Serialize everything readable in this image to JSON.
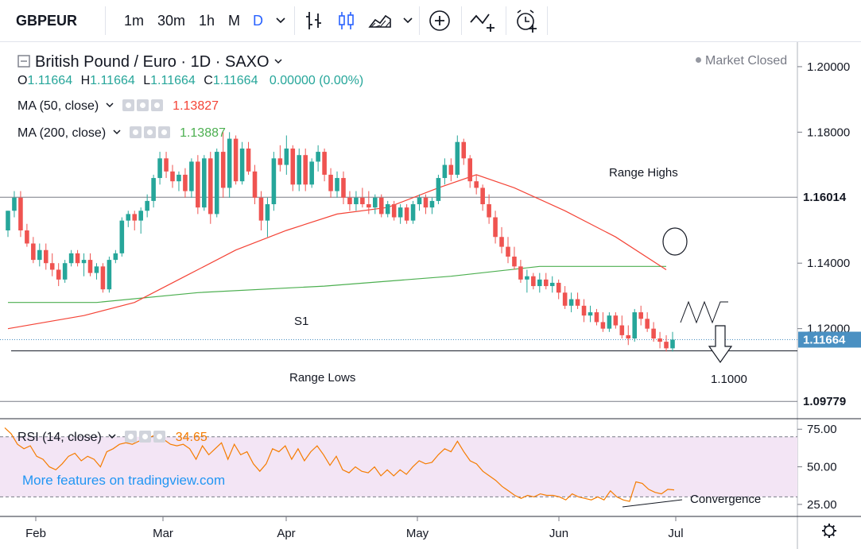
{
  "toolbar": {
    "symbol": "GBPEUR",
    "intervals": [
      "1m",
      "30m",
      "1h",
      "M",
      "D"
    ],
    "active_interval": "D",
    "icons": [
      "chevron-down-icon",
      "bar-style-icon",
      "candle-style-icon",
      "area-style-icon",
      "chevron-down-icon",
      "add-compare-icon",
      "indicators-icon",
      "alert-icon"
    ]
  },
  "legend": {
    "title": "British Pound / Euro · 1D · SAXO",
    "market_status": "Market Closed",
    "o_label": "O",
    "o_value": "1.11664",
    "h_label": "H",
    "h_value": "1.11664",
    "l_label": "L",
    "l_value": "1.11664",
    "c_label": "C",
    "c_value": "1.11664",
    "change": "0.00000 (0.00%)",
    "ma50_label": "MA (50, close)",
    "ma50_value": "1.13827",
    "ma200_label": "MA (200, close)",
    "ma200_value": "1.13887",
    "rsi_label": "RSI (14, close)",
    "rsi_value": "34.65",
    "watermark": "More features on tradingview.com"
  },
  "colors": {
    "up": "#26a69a",
    "down": "#ef5350",
    "ma50": "#f44336",
    "ma200": "#4caf50",
    "rsi": "#f57c00",
    "rsi_band": "#f3e5f5",
    "price_tag": "#4a90c2",
    "accent": "#2962ff"
  },
  "chart_data": [
    {
      "type": "candlestick",
      "title": "British Pound / Euro · 1D · SAXO",
      "x_ticks": [
        "Feb",
        "Mar",
        "Apr",
        "May",
        "Jun",
        "Jul"
      ],
      "y_ticks": [
        "1.20000",
        "1.18000",
        "1.14000",
        "1.12000"
      ],
      "ylim": [
        1.0925,
        1.2075
      ],
      "price_labels": [
        {
          "value": 1.16014,
          "text": "1.16014"
        },
        {
          "value": 1.11664,
          "text": "1.11664"
        },
        {
          "value": 1.09779,
          "text": "1.09779"
        }
      ],
      "ohlc": [
        [
          1.15,
          1.156,
          1.148,
          1.156
        ],
        [
          1.156,
          1.162,
          1.154,
          1.16
        ],
        [
          1.16,
          1.162,
          1.148,
          1.15
        ],
        [
          1.15,
          1.152,
          1.145,
          1.146
        ],
        [
          1.146,
          1.148,
          1.14,
          1.141
        ],
        [
          1.141,
          1.146,
          1.139,
          1.144
        ],
        [
          1.144,
          1.146,
          1.138,
          1.14
        ],
        [
          1.14,
          1.143,
          1.136,
          1.138
        ],
        [
          1.138,
          1.14,
          1.133,
          1.135
        ],
        [
          1.135,
          1.141,
          1.134,
          1.14
        ],
        [
          1.14,
          1.144,
          1.139,
          1.143
        ],
        [
          1.143,
          1.144,
          1.139,
          1.14
        ],
        [
          1.14,
          1.143,
          1.136,
          1.141
        ],
        [
          1.141,
          1.143,
          1.136,
          1.137
        ],
        [
          1.137,
          1.14,
          1.135,
          1.139
        ],
        [
          1.139,
          1.14,
          1.131,
          1.132
        ],
        [
          1.132,
          1.142,
          1.131,
          1.141
        ],
        [
          1.141,
          1.144,
          1.14,
          1.143
        ],
        [
          1.143,
          1.154,
          1.142,
          1.153
        ],
        [
          1.153,
          1.156,
          1.151,
          1.155
        ],
        [
          1.155,
          1.156,
          1.15,
          1.153
        ],
        [
          1.153,
          1.157,
          1.149,
          1.156
        ],
        [
          1.156,
          1.161,
          1.154,
          1.159
        ],
        [
          1.159,
          1.167,
          1.157,
          1.166
        ],
        [
          1.166,
          1.174,
          1.164,
          1.172
        ],
        [
          1.172,
          1.174,
          1.166,
          1.168
        ],
        [
          1.168,
          1.17,
          1.163,
          1.165
        ],
        [
          1.165,
          1.168,
          1.162,
          1.167
        ],
        [
          1.167,
          1.169,
          1.16,
          1.162
        ],
        [
          1.162,
          1.172,
          1.16,
          1.171
        ],
        [
          1.171,
          1.173,
          1.155,
          1.157
        ],
        [
          1.157,
          1.173,
          1.156,
          1.172
        ],
        [
          1.172,
          1.174,
          1.152,
          1.155
        ],
        [
          1.155,
          1.175,
          1.154,
          1.174
        ],
        [
          1.174,
          1.18,
          1.16,
          1.163
        ],
        [
          1.163,
          1.18,
          1.16,
          1.178
        ],
        [
          1.178,
          1.179,
          1.164,
          1.165
        ],
        [
          1.165,
          1.177,
          1.164,
          1.175
        ],
        [
          1.175,
          1.177,
          1.167,
          1.168
        ],
        [
          1.168,
          1.17,
          1.158,
          1.16
        ],
        [
          1.16,
          1.162,
          1.15,
          1.153
        ],
        [
          1.153,
          1.16,
          1.148,
          1.158
        ],
        [
          1.158,
          1.174,
          1.156,
          1.172
        ],
        [
          1.172,
          1.176,
          1.168,
          1.17
        ],
        [
          1.17,
          1.179,
          1.167,
          1.175
        ],
        [
          1.175,
          1.176,
          1.162,
          1.164
        ],
        [
          1.164,
          1.175,
          1.162,
          1.173
        ],
        [
          1.173,
          1.175,
          1.162,
          1.164
        ],
        [
          1.164,
          1.172,
          1.163,
          1.171
        ],
        [
          1.171,
          1.176,
          1.168,
          1.174
        ],
        [
          1.174,
          1.175,
          1.165,
          1.167
        ],
        [
          1.167,
          1.169,
          1.16,
          1.162
        ],
        [
          1.162,
          1.168,
          1.16,
          1.166
        ],
        [
          1.166,
          1.168,
          1.158,
          1.16
        ],
        [
          1.16,
          1.162,
          1.156,
          1.158
        ],
        [
          1.158,
          1.162,
          1.156,
          1.16
        ],
        [
          1.16,
          1.163,
          1.157,
          1.158
        ],
        [
          1.158,
          1.162,
          1.155,
          1.157
        ],
        [
          1.157,
          1.161,
          1.155,
          1.16
        ],
        [
          1.16,
          1.161,
          1.154,
          1.155
        ],
        [
          1.155,
          1.159,
          1.154,
          1.158
        ],
        [
          1.158,
          1.159,
          1.153,
          1.154
        ],
        [
          1.154,
          1.158,
          1.152,
          1.157
        ],
        [
          1.157,
          1.158,
          1.152,
          1.153
        ],
        [
          1.153,
          1.159,
          1.152,
          1.158
        ],
        [
          1.158,
          1.161,
          1.156,
          1.16
        ],
        [
          1.16,
          1.161,
          1.155,
          1.157
        ],
        [
          1.157,
          1.16,
          1.155,
          1.159
        ],
        [
          1.159,
          1.167,
          1.158,
          1.166
        ],
        [
          1.166,
          1.172,
          1.164,
          1.17
        ],
        [
          1.17,
          1.172,
          1.165,
          1.167
        ],
        [
          1.167,
          1.179,
          1.166,
          1.177
        ],
        [
          1.177,
          1.178,
          1.17,
          1.172
        ],
        [
          1.172,
          1.173,
          1.163,
          1.165
        ],
        [
          1.165,
          1.167,
          1.161,
          1.163
        ],
        [
          1.163,
          1.164,
          1.156,
          1.158
        ],
        [
          1.158,
          1.161,
          1.152,
          1.154
        ],
        [
          1.154,
          1.156,
          1.146,
          1.148
        ],
        [
          1.148,
          1.151,
          1.143,
          1.145
        ],
        [
          1.145,
          1.148,
          1.14,
          1.142
        ],
        [
          1.142,
          1.145,
          1.138,
          1.139
        ],
        [
          1.139,
          1.141,
          1.134,
          1.135
        ],
        [
          1.135,
          1.138,
          1.131,
          1.136
        ],
        [
          1.136,
          1.137,
          1.132,
          1.133
        ],
        [
          1.133,
          1.137,
          1.131,
          1.135
        ],
        [
          1.135,
          1.137,
          1.132,
          1.133
        ],
        [
          1.133,
          1.136,
          1.131,
          1.134
        ],
        [
          1.134,
          1.135,
          1.129,
          1.131
        ],
        [
          1.131,
          1.133,
          1.126,
          1.127
        ],
        [
          1.127,
          1.131,
          1.125,
          1.129
        ],
        [
          1.129,
          1.131,
          1.126,
          1.127
        ],
        [
          1.127,
          1.129,
          1.122,
          1.124
        ],
        [
          1.124,
          1.127,
          1.122,
          1.125
        ],
        [
          1.125,
          1.126,
          1.121,
          1.122
        ],
        [
          1.122,
          1.125,
          1.119,
          1.12
        ],
        [
          1.12,
          1.125,
          1.119,
          1.124
        ],
        [
          1.124,
          1.125,
          1.12,
          1.121
        ],
        [
          1.121,
          1.124,
          1.117,
          1.118
        ],
        [
          1.118,
          1.121,
          1.115,
          1.117
        ],
        [
          1.117,
          1.126,
          1.116,
          1.125
        ],
        [
          1.125,
          1.127,
          1.121,
          1.123
        ],
        [
          1.123,
          1.125,
          1.119,
          1.12
        ],
        [
          1.12,
          1.122,
          1.116,
          1.117
        ],
        [
          1.117,
          1.119,
          1.114,
          1.116
        ],
        [
          1.116,
          1.118,
          1.113,
          1.114
        ],
        [
          1.114,
          1.119,
          1.113,
          1.11664
        ]
      ],
      "ma50": [
        [
          0,
          1.12
        ],
        [
          12,
          1.124
        ],
        [
          20,
          1.128
        ],
        [
          28,
          1.136
        ],
        [
          36,
          1.144
        ],
        [
          44,
          1.15
        ],
        [
          52,
          1.155
        ],
        [
          60,
          1.157
        ],
        [
          68,
          1.163
        ],
        [
          74,
          1.167
        ],
        [
          80,
          1.163
        ],
        [
          88,
          1.156
        ],
        [
          96,
          1.148
        ],
        [
          104,
          1.138
        ]
      ],
      "ma200": [
        [
          0,
          1.128
        ],
        [
          14,
          1.128
        ],
        [
          30,
          1.131
        ],
        [
          50,
          1.133
        ],
        [
          70,
          1.136
        ],
        [
          84,
          1.139
        ],
        [
          104,
          1.139
        ]
      ]
    },
    {
      "type": "line",
      "name": "RSI (14, close)",
      "y_ticks": [
        "75.00",
        "50.00",
        "25.00"
      ],
      "ylim": [
        17,
        82
      ],
      "band": [
        30,
        70
      ],
      "x_ticks": [
        "Feb",
        "Mar",
        "Apr",
        "May",
        "Jun",
        "Jul"
      ],
      "values": [
        76,
        72,
        65,
        62,
        64,
        57,
        55,
        50,
        48,
        52,
        57,
        59,
        54,
        57,
        55,
        50,
        60,
        62,
        65,
        66,
        65,
        67,
        69,
        70,
        72,
        68,
        65,
        64,
        65,
        62,
        55,
        64,
        58,
        62,
        66,
        55,
        65,
        58,
        60,
        52,
        47,
        52,
        62,
        60,
        64,
        55,
        62,
        54,
        60,
        64,
        58,
        51,
        57,
        48,
        46,
        50,
        47,
        46,
        50,
        44,
        48,
        44,
        48,
        45,
        50,
        54,
        52,
        53,
        58,
        62,
        60,
        67,
        60,
        54,
        52,
        47,
        44,
        41,
        37,
        34,
        31,
        29,
        31,
        30,
        32,
        31,
        31,
        30,
        28,
        32,
        30,
        29,
        28,
        30,
        28,
        34,
        30,
        28,
        27,
        40,
        39,
        35,
        33,
        32,
        35,
        34.65
      ]
    }
  ],
  "annotations": {
    "range_highs": "Range Highs",
    "range_lows": "Range Lows",
    "s1": "S1",
    "target": "1.1000",
    "convergence": "Convergence"
  }
}
